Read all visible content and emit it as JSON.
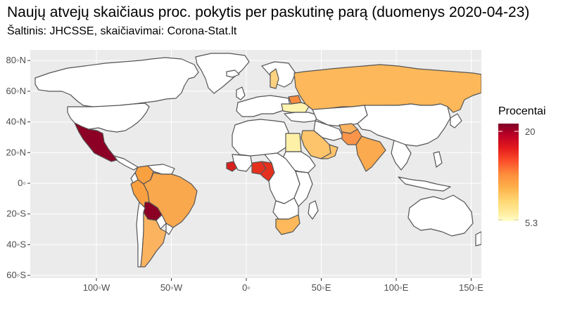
{
  "title": "Naujų atvejų skaičiaus proc. pokytis per paskutinę parą (duomenys 2020-04-23)",
  "subtitle": "Šaltinis: JHCSSE, skaičiavimai: Corona-Stat.lt",
  "map": {
    "background_color": "#ebebeb",
    "grid_color": "#ffffff",
    "land_default_color": "#ffffff",
    "border_color": "#555555",
    "y_ticks": [
      {
        "lat": 80,
        "label": "80◦N"
      },
      {
        "lat": 60,
        "label": "60◦N"
      },
      {
        "lat": 40,
        "label": "40◦N"
      },
      {
        "lat": 20,
        "label": "20◦N"
      },
      {
        "lat": 0,
        "label": "0◦"
      },
      {
        "lat": -20,
        "label": "20◦S"
      },
      {
        "lat": -40,
        "label": "40◦S"
      },
      {
        "lat": -60,
        "label": "60◦S"
      }
    ],
    "x_ticks": [
      {
        "lon": -100,
        "label": "100◦W"
      },
      {
        "lon": -50,
        "label": "50◦W"
      },
      {
        "lon": 0,
        "label": "0◦"
      },
      {
        "lon": 50,
        "label": "50◦E"
      },
      {
        "lon": 100,
        "label": "100◦E"
      },
      {
        "lon": 150,
        "label": "150◦E"
      }
    ],
    "highlighted_regions": [
      {
        "name": "Mexico",
        "color": "#8b0024"
      },
      {
        "name": "Bolivia",
        "color": "#8b0024"
      },
      {
        "name": "Nigeria",
        "color": "#e6301e"
      },
      {
        "name": "Cameroon",
        "color": "#e6301e"
      },
      {
        "name": "Guinea",
        "color": "#d52020"
      },
      {
        "name": "Russia",
        "color": "#fcb85a"
      },
      {
        "name": "Brazil",
        "color": "#f9a84e"
      },
      {
        "name": "Argentina",
        "color": "#fcb360"
      },
      {
        "name": "Colombia",
        "color": "#f9a040"
      },
      {
        "name": "Peru",
        "color": "#f9a040"
      },
      {
        "name": "South Africa",
        "color": "#fcb85a"
      },
      {
        "name": "Egypt",
        "color": "#fff0a8"
      },
      {
        "name": "Saudi Arabia",
        "color": "#fdc46c"
      },
      {
        "name": "Pakistan",
        "color": "#f9944a"
      },
      {
        "name": "Afghanistan",
        "color": "#fcb360"
      },
      {
        "name": "India",
        "color": "#fcaa50"
      },
      {
        "name": "Oman",
        "color": "#fdc46c"
      },
      {
        "name": "Belarus",
        "color": "#f98c3c"
      },
      {
        "name": "Ukraine",
        "color": "#fff3b0"
      },
      {
        "name": "Sweden",
        "color": "#fdd280"
      }
    ]
  },
  "legend": {
    "title": "Procentai",
    "min": 5.3,
    "max": 20,
    "tick_labels": [
      "20",
      "5.3"
    ],
    "colors": [
      "#800026",
      "#bd0026",
      "#e31a1c",
      "#fc4e2a",
      "#fd8d3c",
      "#feb24c",
      "#fed976",
      "#ffeda0",
      "#ffffcc"
    ]
  }
}
